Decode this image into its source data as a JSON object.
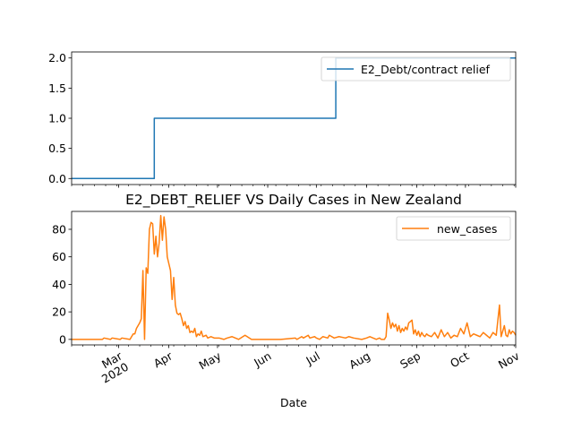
{
  "chart_data": [
    {
      "type": "line",
      "title": "",
      "xlabel": "",
      "ylabel": "",
      "xlim": [
        "2020-02-01",
        "2020-11-01"
      ],
      "ylim": [
        -0.1,
        2.1
      ],
      "yticks": [
        "0.0",
        "0.5",
        "1.0",
        "1.5",
        "2.0"
      ],
      "legend_position": "upper right",
      "series": [
        {
          "name": "E2_Debt/contract relief",
          "color": "#1f77b4",
          "x": [
            "2020-02-01",
            "2020-03-23",
            "2020-03-23",
            "2020-07-13",
            "2020-07-13",
            "2020-11-01"
          ],
          "y": [
            0,
            0,
            1,
            1,
            2,
            2
          ]
        }
      ]
    },
    {
      "type": "line",
      "title": "E2_DEBT_RELIEF VS Daily Cases in New Zealand",
      "xlabel": "Date",
      "ylabel": "",
      "xlim": [
        "2020-02-01",
        "2020-11-01"
      ],
      "ylim": [
        -4,
        93
      ],
      "yticks": [
        "0",
        "20",
        "40",
        "60",
        "80"
      ],
      "xtick_labels": [
        "Mar\n2020",
        "Apr",
        "May",
        "Jun",
        "Jul",
        "Aug",
        "Sep",
        "Oct",
        "Nov"
      ],
      "xtick_dates": [
        "2020-03-01",
        "2020-04-01",
        "2020-05-01",
        "2020-06-01",
        "2020-07-01",
        "2020-08-01",
        "2020-09-01",
        "2020-10-01",
        "2020-11-01"
      ],
      "legend_position": "upper right",
      "series": [
        {
          "name": "new_cases",
          "color": "#ff7f0e",
          "x": [
            "2020-02-01",
            "2020-02-15",
            "2020-02-20",
            "2020-02-21",
            "2020-02-25",
            "2020-02-26",
            "2020-03-02",
            "2020-03-03",
            "2020-03-08",
            "2020-03-09",
            "2020-03-10",
            "2020-03-11",
            "2020-03-12",
            "2020-03-13",
            "2020-03-14",
            "2020-03-15",
            "2020-03-16",
            "2020-03-17",
            "2020-03-18",
            "2020-03-19",
            "2020-03-20",
            "2020-03-21",
            "2020-03-22",
            "2020-03-23",
            "2020-03-24",
            "2020-03-25",
            "2020-03-26",
            "2020-03-27",
            "2020-03-28",
            "2020-03-29",
            "2020-03-30",
            "2020-03-31",
            "2020-04-01",
            "2020-04-02",
            "2020-04-03",
            "2020-04-04",
            "2020-04-05",
            "2020-04-06",
            "2020-04-07",
            "2020-04-08",
            "2020-04-09",
            "2020-04-10",
            "2020-04-11",
            "2020-04-12",
            "2020-04-13",
            "2020-04-14",
            "2020-04-15",
            "2020-04-16",
            "2020-04-17",
            "2020-04-18",
            "2020-04-19",
            "2020-04-20",
            "2020-04-21",
            "2020-04-22",
            "2020-04-24",
            "2020-04-25",
            "2020-04-27",
            "2020-04-29",
            "2020-05-02",
            "2020-05-05",
            "2020-05-07",
            "2020-05-10",
            "2020-05-14",
            "2020-05-18",
            "2020-05-22",
            "2020-06-01",
            "2020-06-09",
            "2020-06-18",
            "2020-06-19",
            "2020-06-22",
            "2020-06-23",
            "2020-06-26",
            "2020-06-27",
            "2020-06-30",
            "2020-07-01",
            "2020-07-03",
            "2020-07-05",
            "2020-07-08",
            "2020-07-09",
            "2020-07-12",
            "2020-07-15",
            "2020-07-19",
            "2020-07-21",
            "2020-07-24",
            "2020-07-29",
            "2020-08-01",
            "2020-08-03",
            "2020-08-07",
            "2020-08-09",
            "2020-08-10",
            "2020-08-11",
            "2020-08-12",
            "2020-08-13",
            "2020-08-14",
            "2020-08-15",
            "2020-08-16",
            "2020-08-17",
            "2020-08-18",
            "2020-08-19",
            "2020-08-20",
            "2020-08-21",
            "2020-08-22",
            "2020-08-23",
            "2020-08-24",
            "2020-08-25",
            "2020-08-26",
            "2020-08-27",
            "2020-08-28",
            "2020-08-29",
            "2020-08-30",
            "2020-08-31",
            "2020-09-01",
            "2020-09-02",
            "2020-09-03",
            "2020-09-04",
            "2020-09-05",
            "2020-09-06",
            "2020-09-07",
            "2020-09-08",
            "2020-09-10",
            "2020-09-12",
            "2020-09-14",
            "2020-09-16",
            "2020-09-18",
            "2020-09-20",
            "2020-09-22",
            "2020-09-24",
            "2020-09-26",
            "2020-09-28",
            "2020-09-30",
            "2020-10-02",
            "2020-10-04",
            "2020-10-06",
            "2020-10-08",
            "2020-10-10",
            "2020-10-12",
            "2020-10-14",
            "2020-10-16",
            "2020-10-18",
            "2020-10-20",
            "2020-10-22",
            "2020-10-23",
            "2020-10-24",
            "2020-10-25",
            "2020-10-26",
            "2020-10-27",
            "2020-10-28",
            "2020-10-29",
            "2020-10-30",
            "2020-10-31",
            "2020-11-01"
          ],
          "y": [
            0,
            0,
            0,
            1,
            0,
            1,
            0,
            1,
            0,
            2,
            4,
            4,
            8,
            10,
            12,
            15,
            50,
            0,
            52,
            48,
            80,
            85,
            84,
            62,
            75,
            60,
            70,
            90,
            72,
            89,
            80,
            60,
            55,
            50,
            29,
            45,
            25,
            19,
            18,
            19,
            15,
            10,
            13,
            8,
            10,
            5,
            6,
            5,
            8,
            2,
            4,
            3,
            6,
            2,
            3,
            1,
            2,
            1,
            1,
            0,
            1,
            2,
            0,
            3,
            0,
            0,
            0,
            1,
            0,
            2,
            1,
            3,
            1,
            2,
            1,
            0,
            2,
            1,
            3,
            1,
            2,
            1,
            2,
            1,
            0,
            1,
            2,
            0,
            1,
            0,
            0,
            0,
            2,
            19,
            14,
            8,
            12,
            9,
            11,
            6,
            10,
            5,
            8,
            6,
            9,
            7,
            12,
            13,
            14,
            4,
            7,
            3,
            6,
            2,
            5,
            3,
            2,
            4,
            3,
            2,
            5,
            1,
            7,
            2,
            5,
            1,
            3,
            2,
            8,
            4,
            12,
            2,
            4,
            3,
            2,
            5,
            3,
            1,
            5,
            3,
            25,
            2,
            6,
            10,
            3,
            2,
            7,
            4,
            6,
            5,
            3
          ]
        }
      ]
    }
  ]
}
